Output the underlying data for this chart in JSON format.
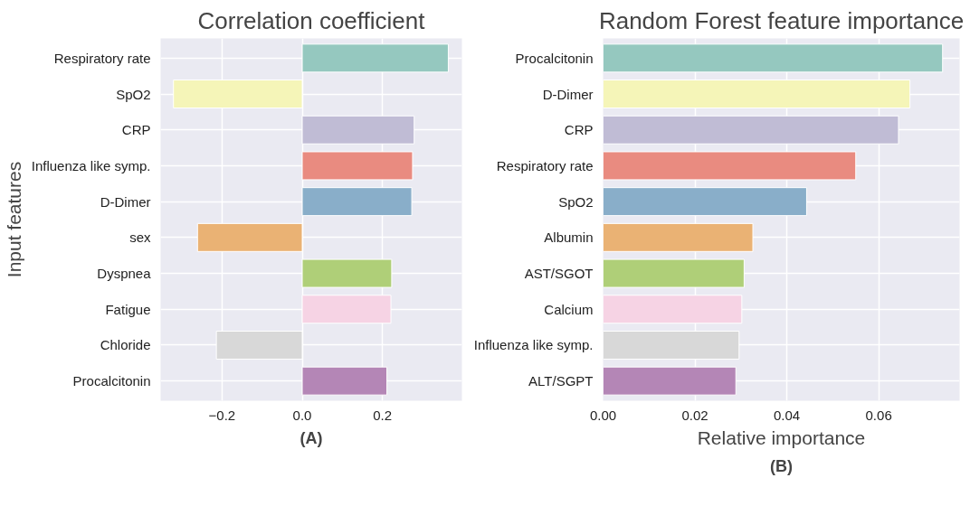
{
  "chart_data": [
    {
      "type": "bar",
      "orientation": "horizontal",
      "title": "Correlation coefficient",
      "ylabel": "Input features",
      "categories": [
        "Respiratory rate",
        "SpO2",
        "CRP",
        "Influenza like symp.",
        "D-Dimer",
        "sex",
        "Dyspnea",
        "Fatigue",
        "Chloride",
        "Procalcitonin"
      ],
      "values": [
        0.364,
        -0.321,
        0.279,
        0.275,
        0.273,
        -0.261,
        0.223,
        0.221,
        -0.214,
        0.211
      ],
      "colors": [
        "#95c8bf",
        "#f5f5b8",
        "#c0bcd5",
        "#e98b80",
        "#89aec9",
        "#eab274",
        "#afcf78",
        "#f6d3e4",
        "#d8d8d8",
        "#b486b6"
      ],
      "xlim": [
        -0.353,
        0.398
      ],
      "xticks": [
        {
          "value": -0.2,
          "label": "−0.2"
        },
        {
          "value": 0.0,
          "label": "0.0"
        },
        {
          "value": 0.2,
          "label": "0.2"
        }
      ],
      "grid": true,
      "annotations": [
        "(A)"
      ]
    },
    {
      "type": "bar",
      "orientation": "horizontal",
      "title": "Random Forest feature importance",
      "xlabel": "Relative importance",
      "categories": [
        "Procalcitonin",
        "D-Dimer",
        "CRP",
        "Respiratory rate",
        "SpO2",
        "Albumin",
        "AST/SGOT",
        "Calcium",
        "Influenza like symp.",
        "ALT/SGPT"
      ],
      "values": [
        0.0739,
        0.0668,
        0.0643,
        0.055,
        0.0443,
        0.0326,
        0.0307,
        0.0302,
        0.0296,
        0.0289
      ],
      "colors": [
        "#95c8bf",
        "#f5f5b8",
        "#c0bcd5",
        "#e98b80",
        "#89aec9",
        "#eab274",
        "#afcf78",
        "#f6d3e4",
        "#d8d8d8",
        "#b486b6"
      ],
      "xlim": [
        0.0,
        0.0776
      ],
      "xticks": [
        {
          "value": 0.0,
          "label": "0.00"
        },
        {
          "value": 0.02,
          "label": "0.02"
        },
        {
          "value": 0.04,
          "label": "0.04"
        },
        {
          "value": 0.06,
          "label": "0.06"
        }
      ],
      "grid": true,
      "annotations": [
        "(B)"
      ]
    }
  ]
}
